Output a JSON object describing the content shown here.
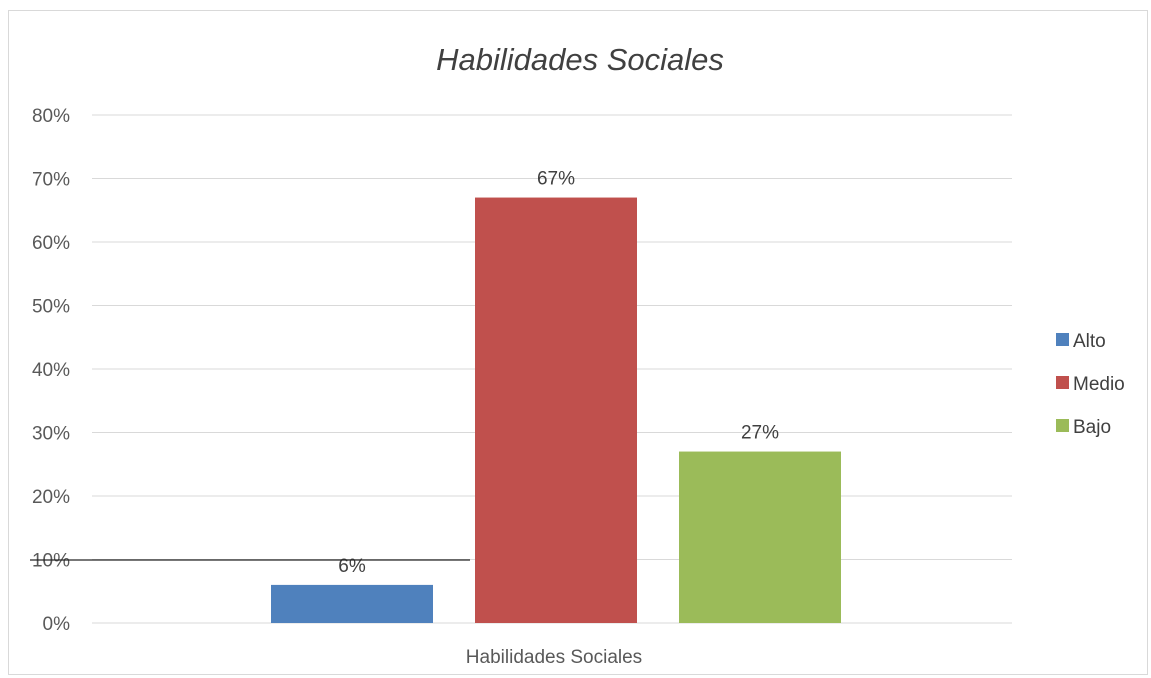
{
  "chart_data": {
    "type": "bar",
    "title": "Habilidades Sociales",
    "categories": [
      "Habilidades Sociales"
    ],
    "series": [
      {
        "name": "Alto",
        "values": [
          0.06
        ],
        "label": "6%",
        "color": "#4f81bd"
      },
      {
        "name": "Medio",
        "values": [
          0.67
        ],
        "label": "67%",
        "color": "#c0504d"
      },
      {
        "name": "Bajo",
        "values": [
          0.27
        ],
        "label": "27%",
        "color": "#9bbb59"
      }
    ],
    "ylim": [
      0,
      0.8
    ],
    "yticks": [
      0,
      0.1,
      0.2,
      0.3,
      0.4,
      0.5,
      0.6,
      0.7,
      0.8
    ],
    "ytick_labels": [
      "0%",
      "10%",
      "20%",
      "30%",
      "40%",
      "50%",
      "60%",
      "70%",
      "80%"
    ],
    "grid": true,
    "legend_position": "right",
    "gridline_color": "#d9d9d9"
  }
}
